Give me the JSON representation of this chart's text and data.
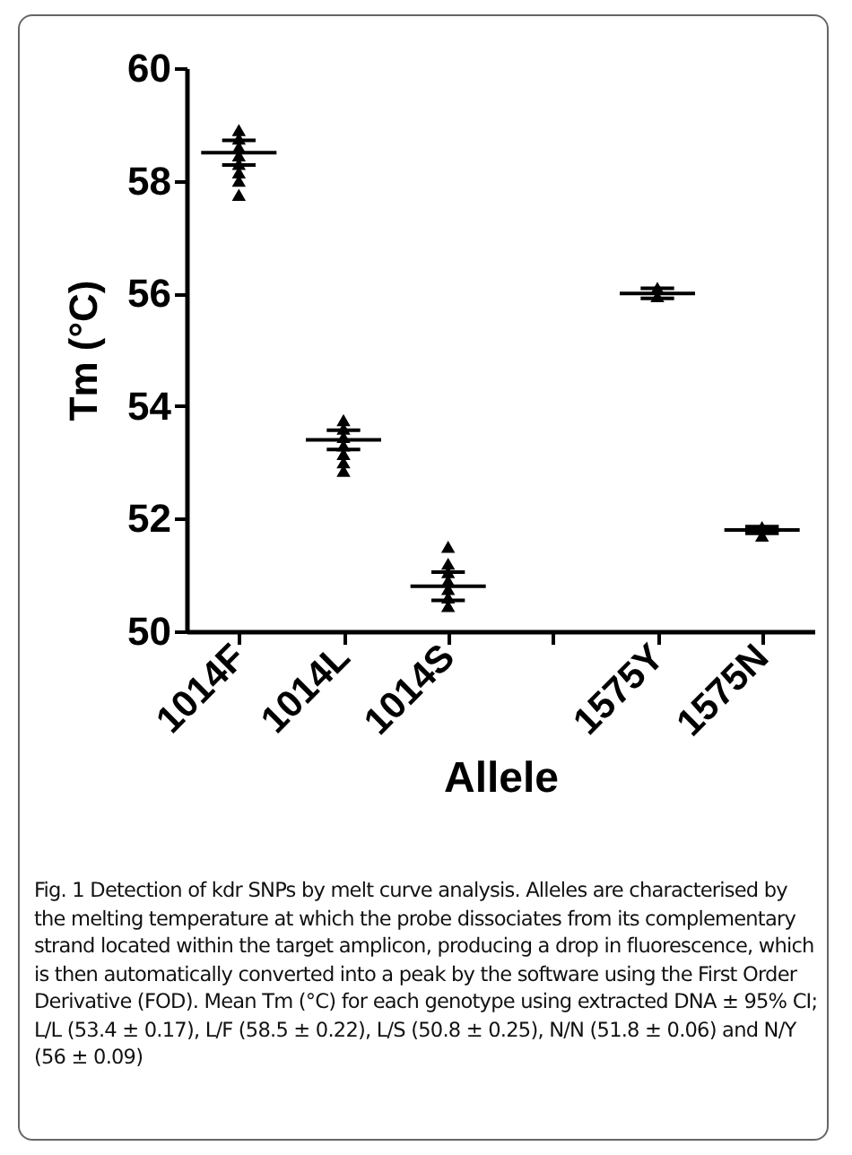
{
  "chart_data": {
    "type": "scatter",
    "xlabel": "Allele",
    "ylabel": "Tm (°C)",
    "categories": [
      "1014F",
      "1014L",
      "1014S",
      null,
      "1575Y",
      "1575N"
    ],
    "ylim": [
      50,
      60
    ],
    "yticks": [
      50,
      52,
      54,
      56,
      58,
      60
    ],
    "series": [
      {
        "marker": "triangle",
        "color": "#000000",
        "x": [
          "1014F",
          "1014F",
          "1014F",
          "1014F",
          "1014F",
          "1014F",
          "1014F",
          "1014F",
          "1014L",
          "1014L",
          "1014L",
          "1014L",
          "1014L",
          "1014L",
          "1014L",
          "1014S",
          "1014S",
          "1014S",
          "1014S",
          "1014S",
          "1014S",
          "1014S",
          "1575Y",
          "1575Y",
          "1575N",
          "1575N"
        ],
        "values": [
          58.9,
          58.75,
          58.6,
          58.45,
          58.3,
          58.15,
          58.0,
          57.75,
          53.75,
          53.6,
          53.45,
          53.3,
          53.15,
          53.0,
          52.85,
          51.5,
          51.2,
          51.05,
          50.9,
          50.75,
          50.6,
          50.45,
          56.1,
          55.95,
          51.85,
          51.7
        ]
      },
      {
        "type": "box",
        "color": "#000000",
        "x": [
          "1014F",
          "1014L",
          "1014S",
          "1575Y",
          "1575N"
        ],
        "boxes": [
          {
            "low": 58.28,
            "q1": 58.5,
            "median": 58.5,
            "q3": 58.5,
            "high": 58.72
          },
          {
            "low": 53.23,
            "q1": 53.4,
            "median": 53.4,
            "q3": 53.4,
            "high": 53.57
          },
          {
            "low": 50.55,
            "q1": 50.8,
            "median": 50.8,
            "q3": 50.8,
            "high": 51.05
          },
          {
            "low": 55.91,
            "q1": 56,
            "median": 56,
            "q3": 56,
            "high": 56.09
          },
          {
            "low": 51.74,
            "q1": 51.8,
            "median": 51.8,
            "q3": 51.8,
            "high": 51.86
          }
        ]
      }
    ],
    "annotations": [
      "Fig. 1 Detection of kdr SNPs by melt curve analysis. Alleles are characterised by the melting temperature at which the probe dissociates from its complementary strand located within the target amplicon, producing a drop in fluorescence, which is then automatically converted into a peak by the software using the First Order Derivative (FOD). Mean Tm (°C) for each genotype using extracted DNA ± 95% CI; L/L (53.4 ± 0.17), L/F (58.5 ± 0.22), L/S (50.8 ± 0.25), N/N (51.8 ± 0.06) and N/Y (56 ± 0.09)"
    ]
  }
}
